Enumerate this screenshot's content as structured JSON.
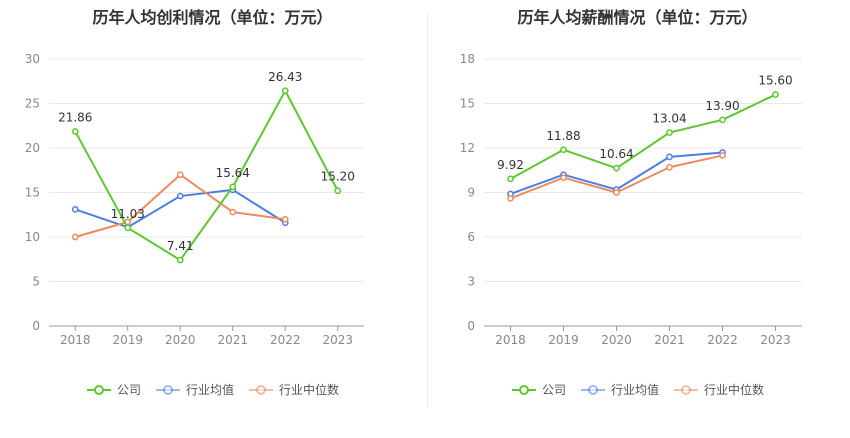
{
  "chart_data": [
    {
      "type": "line",
      "title": "历年人均创利情况（单位：万元）",
      "categories": [
        "2018",
        "2019",
        "2020",
        "2021",
        "2022",
        "2023"
      ],
      "ylim": [
        0,
        30
      ],
      "yticks": [
        0,
        5,
        10,
        15,
        20,
        25,
        30
      ],
      "grid": true,
      "legend_position": "bottom",
      "series": [
        {
          "name": "公司",
          "color": "#5cc72f",
          "values": [
            21.86,
            11.03,
            7.41,
            15.64,
            26.43,
            15.2
          ],
          "labels": [
            "21.86",
            "11.03",
            "7.41",
            "15.64",
            "26.43",
            "15.20"
          ]
        },
        {
          "name": "行业均值",
          "color": "#4c7fe0",
          "values": [
            13.1,
            11.1,
            14.6,
            15.3,
            11.6,
            null
          ]
        },
        {
          "name": "行业中位数",
          "color": "#ee8a60",
          "values": [
            10.0,
            11.7,
            17.0,
            12.8,
            12.0,
            null
          ]
        }
      ]
    },
    {
      "type": "line",
      "title": "历年人均薪酬情况（单位：万元）",
      "categories": [
        "2018",
        "2019",
        "2020",
        "2021",
        "2022",
        "2023"
      ],
      "ylim": [
        0,
        18
      ],
      "yticks": [
        0,
        3,
        6,
        9,
        12,
        15,
        18
      ],
      "grid": true,
      "legend_position": "bottom",
      "series": [
        {
          "name": "公司",
          "color": "#5cc72f",
          "values": [
            9.92,
            11.88,
            10.64,
            13.04,
            13.9,
            15.6
          ],
          "labels": [
            "9.92",
            "11.88",
            "10.64",
            "13.04",
            "13.90",
            "15.60"
          ]
        },
        {
          "name": "行业均值",
          "color": "#4c7fe0",
          "values": [
            8.9,
            10.2,
            9.2,
            11.4,
            11.7,
            null
          ]
        },
        {
          "name": "行业中位数",
          "color": "#ee8a60",
          "values": [
            8.6,
            10.0,
            9.0,
            10.7,
            11.5,
            null
          ]
        }
      ]
    }
  ]
}
